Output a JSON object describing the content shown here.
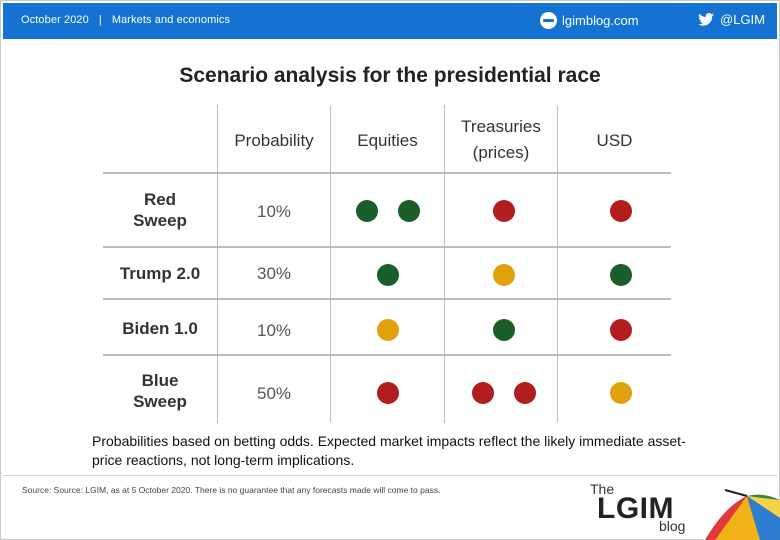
{
  "header": {
    "date": "October 2020",
    "separator": "|",
    "section": "Markets and economics",
    "site": "lgimblog.com",
    "twitter": "@LGIM"
  },
  "title": "Scenario analysis for the presidential race",
  "table": {
    "columns": [
      "Probability",
      "Equities",
      "Treasuries\n(prices)",
      "USD"
    ],
    "rows": [
      {
        "label": "Red\nSweep",
        "probability": "10%",
        "equities": [
          "green",
          "green"
        ],
        "treasuries": [
          "red"
        ],
        "usd": [
          "red"
        ]
      },
      {
        "label": "Trump 2.0",
        "probability": "30%",
        "equities": [
          "green"
        ],
        "treasuries": [
          "amber"
        ],
        "usd": [
          "green"
        ]
      },
      {
        "label": "Biden 1.0",
        "probability": "10%",
        "equities": [
          "amber"
        ],
        "treasuries": [
          "green"
        ],
        "usd": [
          "red"
        ]
      },
      {
        "label": "Blue\nSweep",
        "probability": "50%",
        "equities": [
          "red"
        ],
        "treasuries": [
          "red",
          "red"
        ],
        "usd": [
          "amber"
        ]
      }
    ]
  },
  "colors": {
    "green": "#1a5e2a",
    "red": "#b21d1d",
    "amber": "#e0a10c",
    "topbar": "#1372d2"
  },
  "note": "Probabilities based on betting odds. Expected market impacts reflect the likely immediate asset-price reactions, not long-term implications.",
  "source": "Source: Source: LGIM, as at 5 October 2020. There is no guarantee that any forecasts made will come to pass.",
  "logo": {
    "the": "The",
    "name": "LGIM",
    "blog": "blog"
  }
}
